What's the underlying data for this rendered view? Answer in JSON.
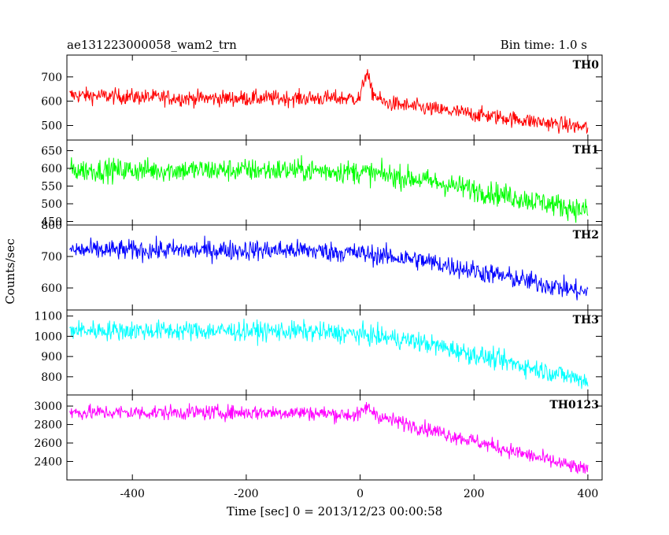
{
  "header": {
    "left": "ae131223000058_wam2_trn",
    "right": "Bin time: 1.0 s"
  },
  "chart_data": {
    "type": "line",
    "ylabel": "Counts/sec",
    "xlabel": "Time [sec] 0 = 2013/12/23 00:00:58",
    "xlim": [
      -515,
      425
    ],
    "xticks": [
      -400,
      -200,
      0,
      200,
      400
    ],
    "panels": [
      {
        "name": "TH0",
        "color": "#ff0000",
        "ylim": [
          440,
          790
        ],
        "yticks": [
          500,
          600,
          700
        ],
        "trend": [
          [
            -510,
            625
          ],
          [
            -300,
            612
          ],
          [
            0,
            612
          ],
          [
            8,
            700
          ],
          [
            12,
            720
          ],
          [
            20,
            640
          ],
          [
            40,
            595
          ],
          [
            100,
            575
          ],
          [
            400,
            490
          ]
        ],
        "noise": 30
      },
      {
        "name": "TH1",
        "color": "#00ff00",
        "ylim": [
          440,
          680
        ],
        "yticks": [
          450,
          500,
          550,
          600,
          650
        ],
        "trend": [
          [
            -510,
            595
          ],
          [
            -100,
            595
          ],
          [
            0,
            590
          ],
          [
            100,
            570
          ],
          [
            400,
            480
          ]
        ],
        "noise": 30
      },
      {
        "name": "TH2",
        "color": "#0000ff",
        "ylim": [
          530,
          800
        ],
        "yticks": [
          600,
          700,
          800
        ],
        "trend": [
          [
            -510,
            720
          ],
          [
            -100,
            720
          ],
          [
            0,
            710
          ],
          [
            100,
            690
          ],
          [
            400,
            585
          ]
        ],
        "noise": 30
      },
      {
        "name": "TH3",
        "color": "#00ffff",
        "ylim": [
          710,
          1130
        ],
        "yticks": [
          800,
          900,
          1000,
          1100
        ],
        "trend": [
          [
            -510,
            1030
          ],
          [
            -100,
            1025
          ],
          [
            0,
            1010
          ],
          [
            100,
            975
          ],
          [
            400,
            780
          ]
        ],
        "noise": 45
      },
      {
        "name": "TH0123",
        "color": "#ff00ff",
        "ylim": [
          2200,
          3120
        ],
        "yticks": [
          2400,
          2600,
          2800,
          3000
        ],
        "trend": [
          [
            -510,
            2930
          ],
          [
            -100,
            2930
          ],
          [
            0,
            2900
          ],
          [
            10,
            2990
          ],
          [
            40,
            2870
          ],
          [
            100,
            2780
          ],
          [
            400,
            2300
          ]
        ],
        "noise": 75
      }
    ]
  }
}
